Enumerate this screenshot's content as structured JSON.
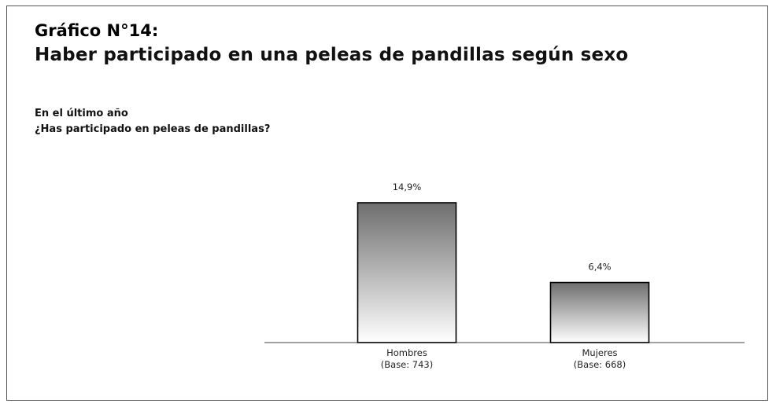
{
  "header": {
    "title": "Gráfico N°14:",
    "subtitle": "Haber participado en una peleas de pandillas según sexo"
  },
  "question": {
    "line1": "En el último año",
    "line2": "¿Has participado en peleas de pandillas?"
  },
  "chart_data": {
    "type": "bar",
    "categories": [
      "Hombres",
      "Mujeres"
    ],
    "category_bases": [
      "(Base: 743)",
      "(Base: 668)"
    ],
    "values": [
      14.9,
      6.4
    ],
    "value_labels": [
      "14,9%",
      "6,4%"
    ],
    "title": "",
    "xlabel": "",
    "ylabel": "",
    "ylim": [
      0,
      20
    ],
    "grid": false,
    "legend": "none",
    "bar_gradient": [
      "#6e6e6e",
      "#ffffff"
    ]
  }
}
